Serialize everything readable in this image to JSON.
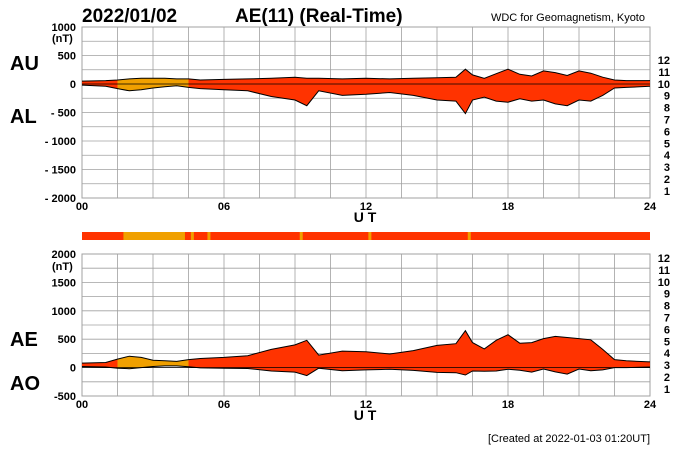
{
  "header": {
    "date": "2022/01/02",
    "title": "AE(11) (Real-Time)",
    "source": "WDC for Geomagnetism, Kyoto"
  },
  "footer": {
    "created": "[Created at 2022-01-03 01:20UT]"
  },
  "colors": {
    "grid": "#a0a0a0",
    "fill_main": "#ff3300",
    "fill_low": "#f0a000",
    "outline": "#000000"
  },
  "station_scale": [
    {
      "label": "12",
      "color": "#ff1493"
    },
    {
      "label": "11",
      "color": "#dd0000"
    },
    {
      "label": "10",
      "color": "#f0a000"
    },
    {
      "label": "9",
      "color": "#f5e000"
    },
    {
      "label": "8",
      "color": "#a6e000"
    },
    {
      "label": "7",
      "color": "#00d8d8"
    },
    {
      "label": "6",
      "color": "#0a6cf5"
    },
    {
      "label": "5",
      "color": "#1a1acc"
    },
    {
      "label": "4",
      "color": "#cc00cc"
    },
    {
      "label": "3",
      "color": "#000000"
    },
    {
      "label": "2",
      "color": "#707070"
    },
    {
      "label": "1",
      "color": "#c8c8c8"
    }
  ],
  "chart_data": [
    {
      "type": "area",
      "panel": "AU/AL",
      "series_labels": [
        "AU",
        "AL"
      ],
      "unit_label": "(nT)",
      "xlabel": "U T",
      "x_ticks": [
        "00",
        "06",
        "12",
        "18",
        "24"
      ],
      "xlim": [
        0,
        24
      ],
      "y_ticks": [
        "1000",
        "500",
        "0",
        "- 500",
        "- 1000",
        "- 1500",
        "- 2000"
      ],
      "ylim": [
        -2000,
        1000
      ],
      "grid": true,
      "x": [
        0,
        1,
        1.5,
        2,
        2.5,
        3,
        3.5,
        4,
        4.5,
        5,
        6,
        7,
        8,
        9,
        9.5,
        10,
        11,
        12,
        13,
        14,
        15,
        15.8,
        16.2,
        16.5,
        17,
        17.5,
        18,
        18.5,
        19,
        19.5,
        20,
        20.5,
        21,
        21.5,
        22,
        22.5,
        23,
        24
      ],
      "AU": [
        50,
        60,
        70,
        90,
        100,
        100,
        100,
        90,
        90,
        70,
        80,
        90,
        100,
        120,
        100,
        100,
        90,
        100,
        90,
        100,
        110,
        120,
        260,
        160,
        100,
        180,
        260,
        170,
        140,
        230,
        200,
        150,
        230,
        190,
        120,
        70,
        60,
        60
      ],
      "AL": [
        -20,
        -40,
        -80,
        -120,
        -100,
        -70,
        -50,
        -30,
        -60,
        -80,
        -100,
        -120,
        -220,
        -280,
        -380,
        -120,
        -200,
        -180,
        -150,
        -200,
        -280,
        -300,
        -520,
        -280,
        -230,
        -300,
        -320,
        -260,
        -300,
        -280,
        -350,
        -380,
        -280,
        -300,
        -200,
        -70,
        -60,
        -40
      ]
    },
    {
      "type": "area",
      "panel": "AE/AO",
      "series_labels": [
        "AE",
        "AO"
      ],
      "unit_label": "(nT)",
      "xlabel": "U T",
      "x_ticks": [
        "00",
        "06",
        "12",
        "18",
        "24"
      ],
      "xlim": [
        0,
        24
      ],
      "y_ticks": [
        "2000",
        "1500",
        "1000",
        "500",
        "0",
        "-500"
      ],
      "ylim": [
        -500,
        2000
      ],
      "grid": true,
      "x": [
        0,
        1,
        1.5,
        2,
        2.5,
        3,
        3.5,
        4,
        4.5,
        5,
        6,
        7,
        8,
        9,
        9.5,
        10,
        11,
        12,
        13,
        14,
        15,
        15.8,
        16.2,
        16.5,
        17,
        17.5,
        18,
        18.5,
        19,
        19.5,
        20,
        20.5,
        21,
        21.5,
        22,
        22.5,
        23,
        24
      ],
      "AE": [
        80,
        90,
        150,
        200,
        180,
        130,
        120,
        110,
        140,
        160,
        180,
        210,
        320,
        400,
        480,
        220,
        290,
        280,
        240,
        300,
        390,
        420,
        650,
        440,
        330,
        480,
        580,
        430,
        440,
        510,
        550,
        530,
        510,
        490,
        320,
        140,
        120,
        100
      ],
      "AO": [
        20,
        10,
        -10,
        -20,
        0,
        20,
        30,
        30,
        15,
        -5,
        -10,
        -15,
        -60,
        -80,
        -140,
        -10,
        -55,
        -40,
        -30,
        -50,
        -85,
        -90,
        -130,
        -60,
        -65,
        -60,
        -30,
        -45,
        -80,
        -25,
        -75,
        -115,
        -25,
        -55,
        -40,
        0,
        0,
        10
      ]
    }
  ]
}
